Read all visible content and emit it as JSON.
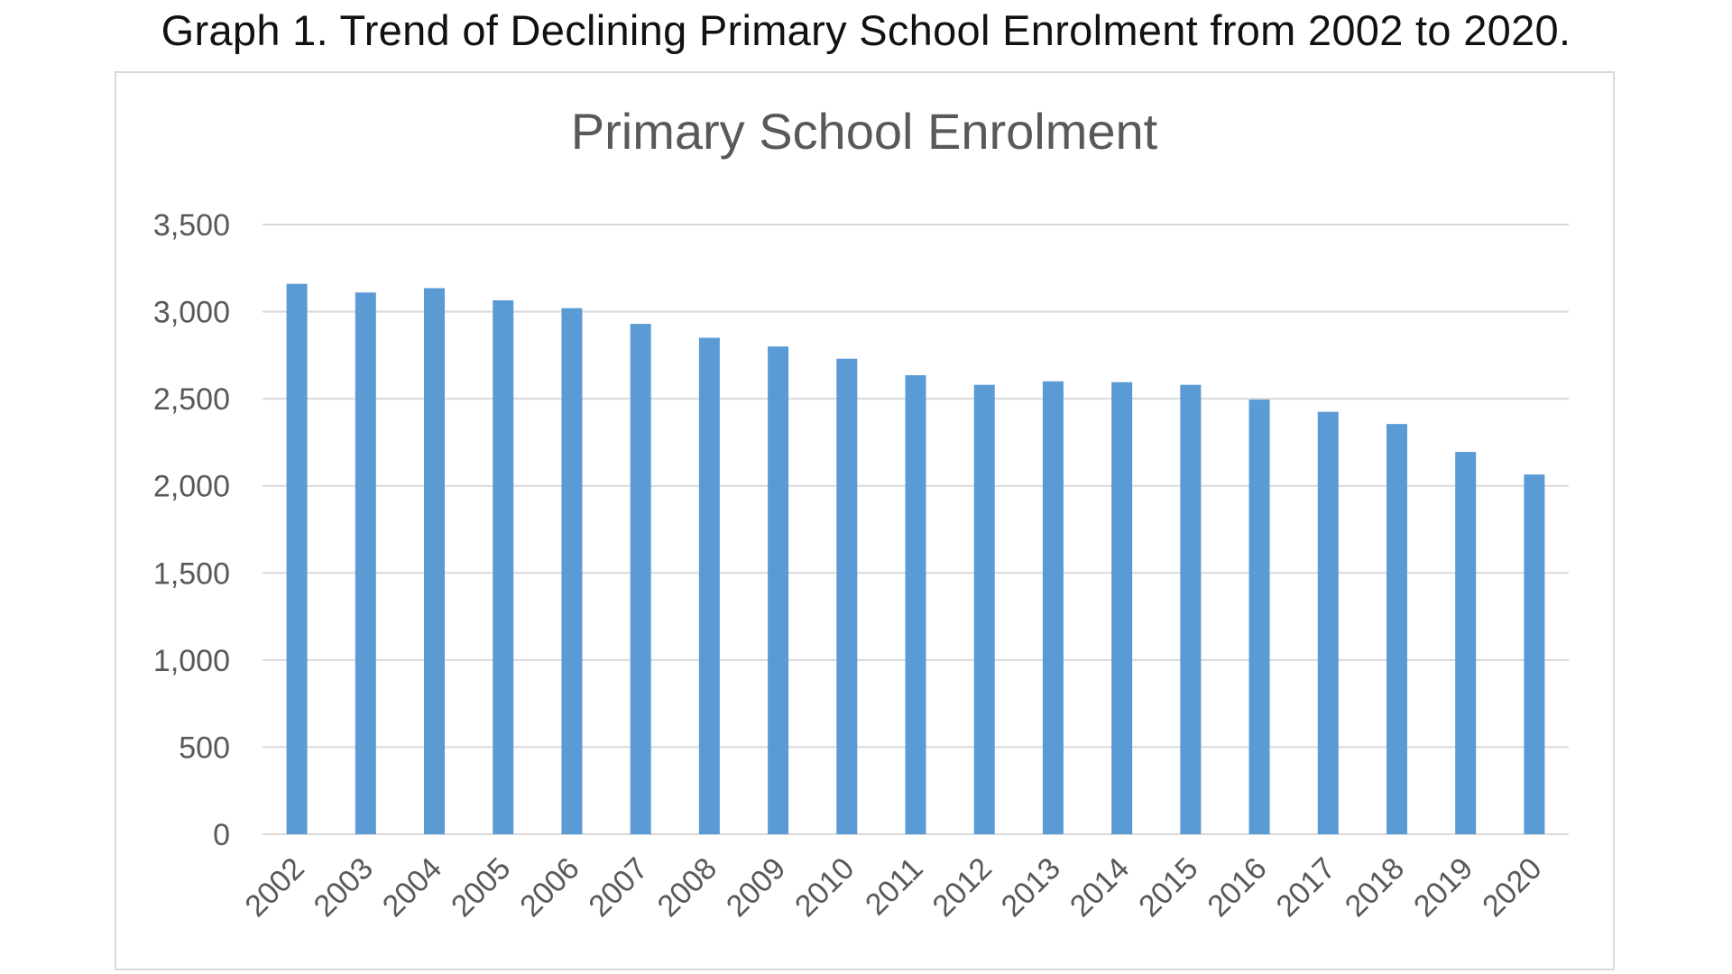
{
  "caption": "Graph 1. Trend of Declining Primary School Enrolment from 2002 to 2020.",
  "chart_data": {
    "type": "bar",
    "title": "Primary School Enrolment",
    "xlabel": "",
    "ylabel": "",
    "categories": [
      "2002",
      "2003",
      "2004",
      "2005",
      "2006",
      "2007",
      "2008",
      "2009",
      "2010",
      "2011",
      "2012",
      "2013",
      "2014",
      "2015",
      "2016",
      "2017",
      "2018",
      "2019",
      "2020"
    ],
    "values": [
      3160,
      3110,
      3135,
      3065,
      3020,
      2930,
      2850,
      2800,
      2730,
      2635,
      2580,
      2600,
      2595,
      2580,
      2495,
      2425,
      2355,
      2195,
      2065
    ],
    "ylim": [
      0,
      3500
    ],
    "yticks": [
      0,
      500,
      1000,
      1500,
      2000,
      2500,
      3000,
      3500
    ],
    "ytick_labels": [
      "0",
      "500",
      "1,000",
      "1,500",
      "2,000",
      "2,500",
      "3,000",
      "3,500"
    ],
    "grid": true,
    "legend": "none",
    "bar_color": "#5b9bd5",
    "grid_color": "#d9d9d9"
  }
}
